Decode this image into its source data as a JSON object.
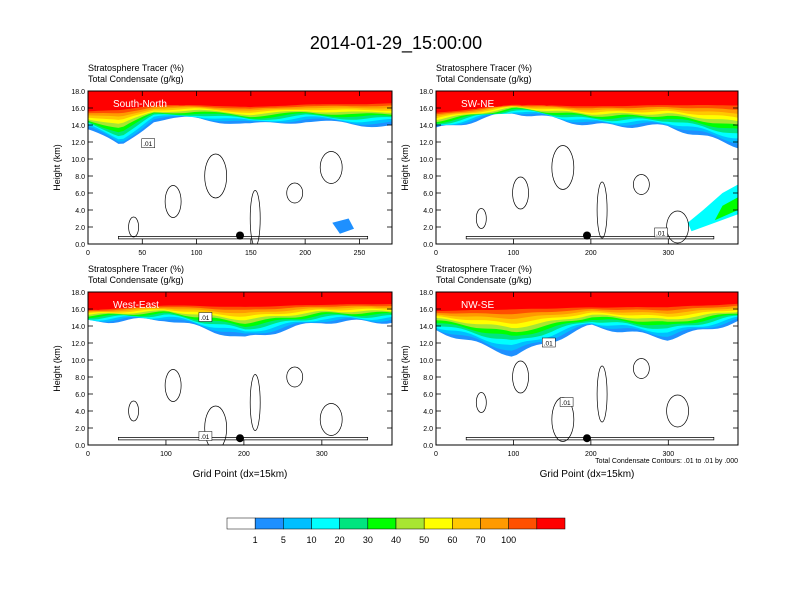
{
  "page_title": "2014-01-29_15:00:00",
  "panel_header_line1": "Stratosphere Tracer   (%)",
  "panel_header_line2": "Total Condensate   (g/kg)",
  "contour_note": "Total Condensate Contours: .01 to .01 by .000",
  "colors": {
    "bins": [
      "#ffffff",
      "#1e90ff",
      "#00bfff",
      "#00ffff",
      "#00e57f",
      "#00ff00",
      "#a8e632",
      "#ffff00",
      "#ffc800",
      "#ff9a00",
      "#ff5000",
      "#ff0000"
    ],
    "contour": "#000000",
    "marker": "#000000"
  },
  "chart_data": [
    {
      "type": "heatmap",
      "panel_label": "South-North",
      "xlabel": "",
      "ylabel": "Height (km)",
      "xlim": [
        0,
        280
      ],
      "ylim": [
        0,
        18
      ],
      "x_ticks": [
        "0",
        "50",
        "100",
        "150",
        "200",
        "250"
      ],
      "y_ticks": [
        "0.0",
        "2.0",
        "4.0",
        "6.0",
        "8.0",
        "10.0",
        "12.0",
        "14.0",
        "16.0",
        "18.0"
      ],
      "tropopause_top_km": [
        [
          0,
          15.8
        ],
        [
          30,
          16.2
        ],
        [
          60,
          16.5
        ],
        [
          100,
          16.5
        ],
        [
          150,
          16.3
        ],
        [
          200,
          16.6
        ],
        [
          250,
          16.7
        ],
        [
          280,
          16.8
        ]
      ],
      "lower_edge_km": [
        [
          0,
          13.5
        ],
        [
          30,
          11.5
        ],
        [
          60,
          14.5
        ],
        [
          100,
          14.8
        ],
        [
          150,
          14.0
        ],
        [
          200,
          14.5
        ],
        [
          250,
          14.0
        ],
        [
          280,
          14.0
        ]
      ],
      "contour_labels": [
        {
          "x": 55,
          "y": 11.8,
          "text": ".01"
        }
      ],
      "marker": {
        "x": 140,
        "y": 1.0
      }
    },
    {
      "type": "heatmap",
      "panel_label": "SW-NE",
      "xlabel": "",
      "ylabel": "Height (km)",
      "xlim": [
        0,
        390
      ],
      "ylim": [
        0,
        18
      ],
      "x_ticks": [
        "0",
        "100",
        "200",
        "300"
      ],
      "y_ticks": [
        "0.0",
        "2.0",
        "4.0",
        "6.0",
        "8.0",
        "10.0",
        "12.0",
        "14.0",
        "16.0",
        "18.0"
      ],
      "tropopause_top_km": [
        [
          0,
          15.6
        ],
        [
          100,
          16.5
        ],
        [
          200,
          16.4
        ],
        [
          300,
          16.6
        ],
        [
          390,
          16.8
        ]
      ],
      "lower_edge_km": [
        [
          0,
          13.5
        ],
        [
          100,
          15.5
        ],
        [
          200,
          14.0
        ],
        [
          300,
          13.8
        ],
        [
          390,
          11.5
        ]
      ],
      "contour_labels": [
        {
          "x": 290,
          "y": 1.3,
          "text": ".01"
        }
      ],
      "marker": {
        "x": 195,
        "y": 1.0
      }
    },
    {
      "type": "heatmap",
      "panel_label": "West-East",
      "xlabel": "Grid Point (dx=15km)",
      "ylabel": "Height (km)",
      "xlim": [
        0,
        390
      ],
      "ylim": [
        0,
        18
      ],
      "x_ticks": [
        "0",
        "100",
        "200",
        "300"
      ],
      "y_ticks": [
        "0.0",
        "2.0",
        "4.0",
        "6.0",
        "8.0",
        "10.0",
        "12.0",
        "14.0",
        "16.0",
        "18.0"
      ],
      "tropopause_top_km": [
        [
          0,
          16.0
        ],
        [
          100,
          16.6
        ],
        [
          200,
          16.6
        ],
        [
          300,
          16.7
        ],
        [
          390,
          16.8
        ]
      ],
      "lower_edge_km": [
        [
          0,
          14.5
        ],
        [
          100,
          14.8
        ],
        [
          200,
          12.5
        ],
        [
          300,
          14.5
        ],
        [
          390,
          14.5
        ]
      ],
      "contour_labels": [
        {
          "x": 150,
          "y": 15.0,
          "text": ".01"
        },
        {
          "x": 150,
          "y": 1.0,
          "text": ".01"
        }
      ],
      "marker": {
        "x": 195,
        "y": 0.8
      }
    },
    {
      "type": "heatmap",
      "panel_label": "NW-SE",
      "xlabel": "Grid Point (dx=15km)",
      "ylabel": "Height (km)",
      "xlim": [
        0,
        390
      ],
      "ylim": [
        0,
        18
      ],
      "x_ticks": [
        "0",
        "100",
        "200",
        "300"
      ],
      "y_ticks": [
        "0.0",
        "2.0",
        "4.0",
        "6.0",
        "8.0",
        "10.0",
        "12.0",
        "14.0",
        "16.0",
        "18.0"
      ],
      "tropopause_top_km": [
        [
          0,
          16.0
        ],
        [
          100,
          16.5
        ],
        [
          200,
          16.4
        ],
        [
          300,
          16.6
        ],
        [
          390,
          16.8
        ]
      ],
      "lower_edge_km": [
        [
          0,
          13.5
        ],
        [
          100,
          10.5
        ],
        [
          200,
          14.0
        ],
        [
          300,
          12.5
        ],
        [
          390,
          14.5
        ]
      ],
      "contour_labels": [
        {
          "x": 145,
          "y": 12.0,
          "text": ".01"
        },
        {
          "x": 168,
          "y": 5.0,
          "text": ".01"
        }
      ],
      "marker": {
        "x": 195,
        "y": 0.8
      }
    }
  ],
  "colorbar": {
    "labels": [
      "1",
      "5",
      "10",
      "20",
      "30",
      "40",
      "50",
      "60",
      "70",
      "100"
    ]
  }
}
